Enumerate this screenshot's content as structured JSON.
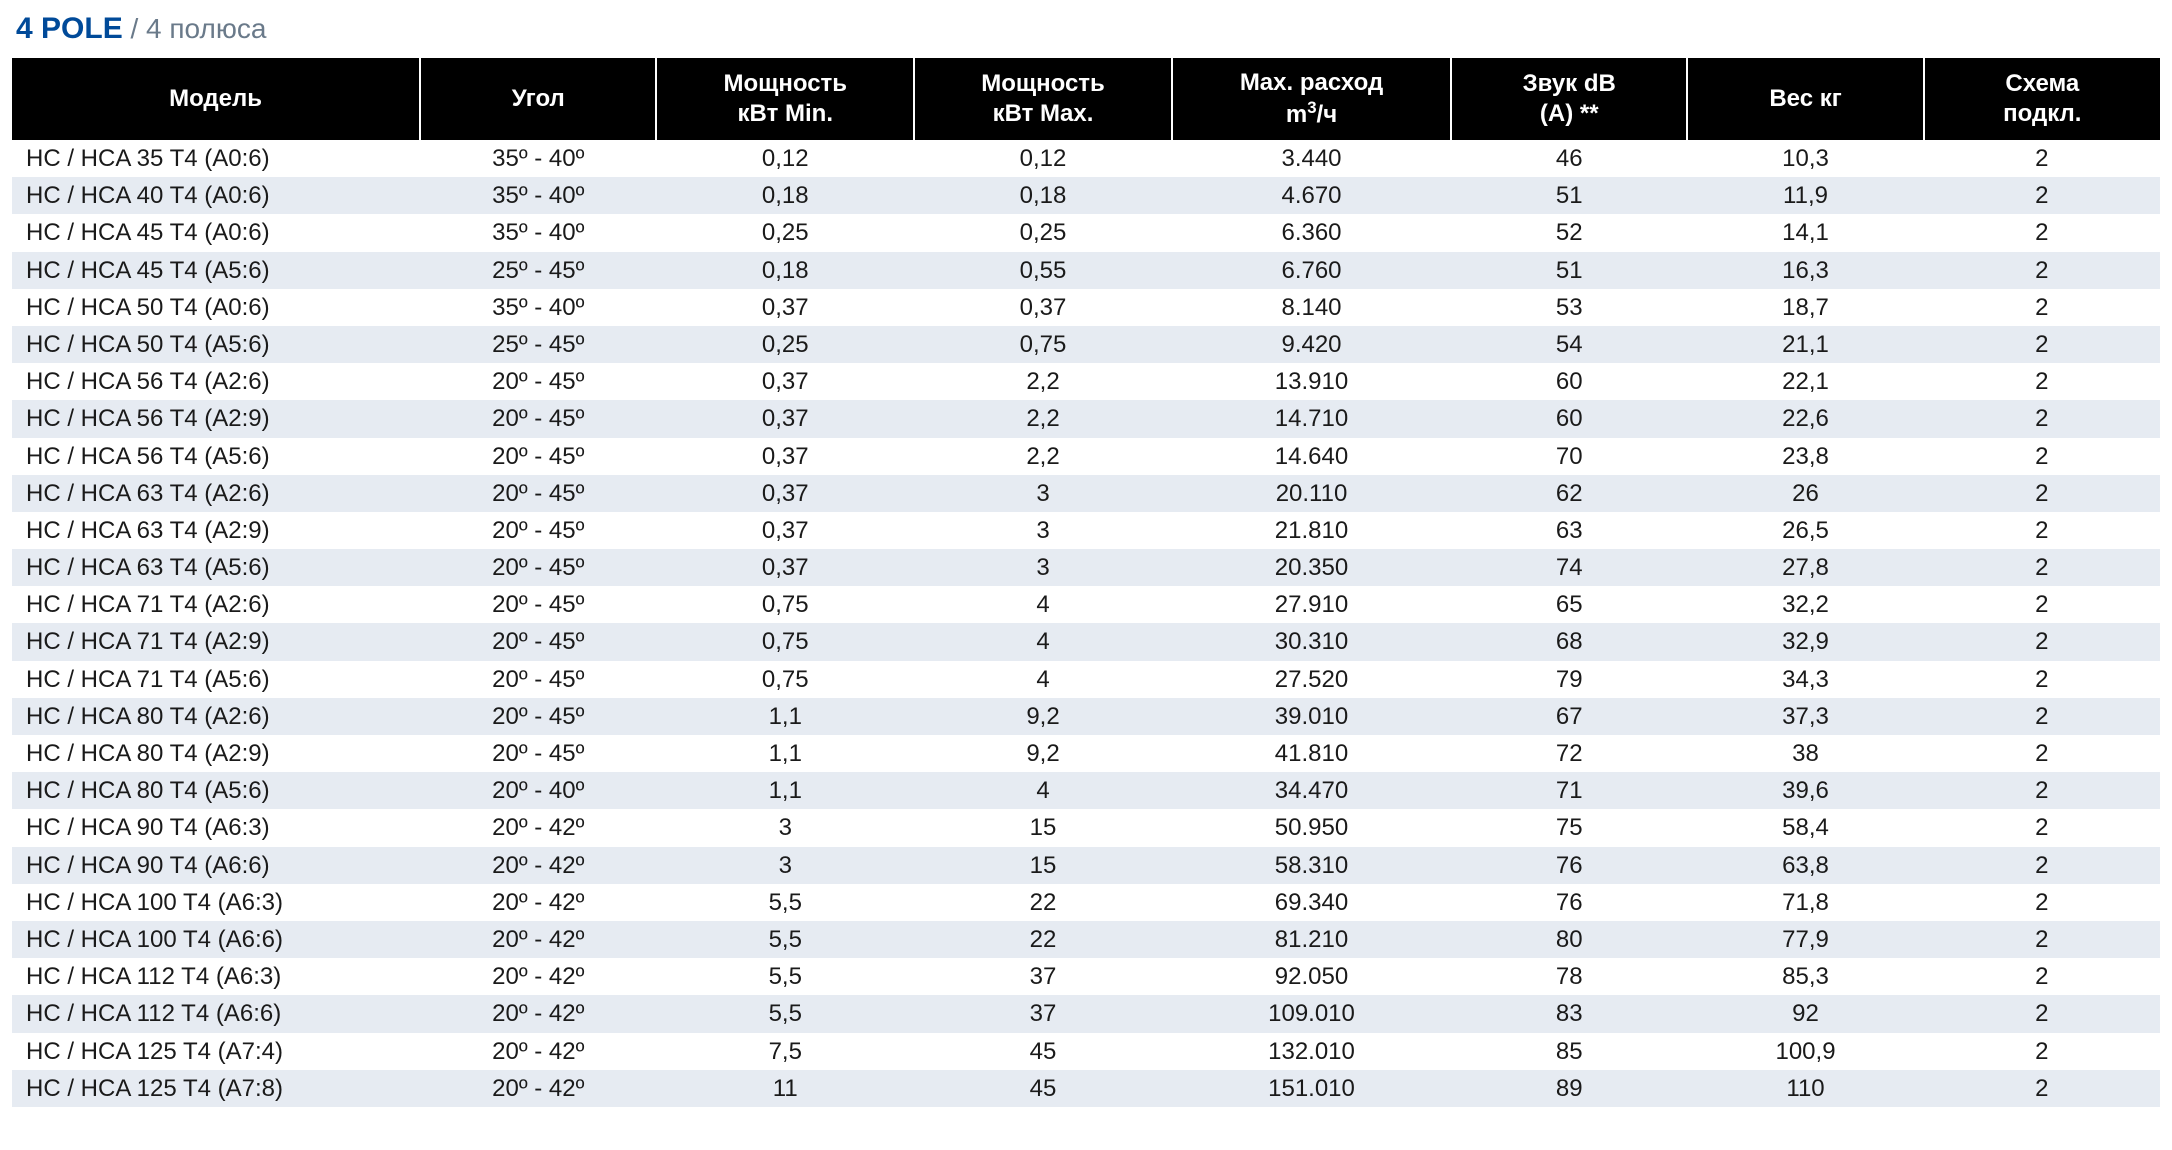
{
  "title": {
    "bold": "4 POLE",
    "separator": " / ",
    "light": "4 полюса"
  },
  "table": {
    "type": "table",
    "header_bg": "#000000",
    "header_fg": "#ffffff",
    "row_bg_odd": "#ffffff",
    "row_bg_even": "#e6ebf2",
    "text_color": "#1a1a1a",
    "font_size_header": 24,
    "font_size_body": 24,
    "columns": [
      {
        "key": "model",
        "label": "Модель",
        "width": "19%",
        "align": "left"
      },
      {
        "key": "angle",
        "label": "Угол",
        "width": "11%",
        "align": "center"
      },
      {
        "key": "pmin",
        "label": "Мощность кВт Min.",
        "width": "12%",
        "align": "center"
      },
      {
        "key": "pmax",
        "label": "Мощность кВт Max.",
        "width": "12%",
        "align": "center"
      },
      {
        "key": "flow",
        "label_html": "Max. расход m³/ч",
        "width": "13%",
        "align": "center"
      },
      {
        "key": "sound",
        "label": "Звук dB (A) **",
        "width": "11%",
        "align": "center"
      },
      {
        "key": "weight",
        "label": "Вес кг",
        "width": "11%",
        "align": "center"
      },
      {
        "key": "scheme",
        "label": "Схема подкл.",
        "width": "11%",
        "align": "center"
      }
    ],
    "rows": [
      {
        "model": "HC / HCA 35 T4 (A0:6)",
        "angle": "35º - 40º",
        "pmin": "0,12",
        "pmax": "0,12",
        "flow": "3.440",
        "sound": "46",
        "weight": "10,3",
        "scheme": "2"
      },
      {
        "model": "HC / HCA 40 T4 (A0:6)",
        "angle": "35º - 40º",
        "pmin": "0,18",
        "pmax": "0,18",
        "flow": "4.670",
        "sound": "51",
        "weight": "11,9",
        "scheme": "2"
      },
      {
        "model": "HC / HCA 45 T4 (A0:6)",
        "angle": "35º - 40º",
        "pmin": "0,25",
        "pmax": "0,25",
        "flow": "6.360",
        "sound": "52",
        "weight": "14,1",
        "scheme": "2"
      },
      {
        "model": "HC / HCA 45 T4 (A5:6)",
        "angle": "25º - 45º",
        "pmin": "0,18",
        "pmax": "0,55",
        "flow": "6.760",
        "sound": "51",
        "weight": "16,3",
        "scheme": "2"
      },
      {
        "model": "HC / HCA 50 T4 (A0:6)",
        "angle": "35º - 40º",
        "pmin": "0,37",
        "pmax": "0,37",
        "flow": "8.140",
        "sound": "53",
        "weight": "18,7",
        "scheme": "2"
      },
      {
        "model": "HC / HCA 50 T4 (A5:6)",
        "angle": "25º - 45º",
        "pmin": "0,25",
        "pmax": "0,75",
        "flow": "9.420",
        "sound": "54",
        "weight": "21,1",
        "scheme": "2"
      },
      {
        "model": "HC / HCA 56 T4 (A2:6)",
        "angle": "20º - 45º",
        "pmin": "0,37",
        "pmax": "2,2",
        "flow": "13.910",
        "sound": "60",
        "weight": "22,1",
        "scheme": "2"
      },
      {
        "model": "HC / HCA 56 T4 (A2:9)",
        "angle": "20º - 45º",
        "pmin": "0,37",
        "pmax": "2,2",
        "flow": "14.710",
        "sound": "60",
        "weight": "22,6",
        "scheme": "2"
      },
      {
        "model": "HC / HCA 56 T4 (A5:6)",
        "angle": "20º - 45º",
        "pmin": "0,37",
        "pmax": "2,2",
        "flow": "14.640",
        "sound": "70",
        "weight": "23,8",
        "scheme": "2"
      },
      {
        "model": "HC / HCA 63 T4 (A2:6)",
        "angle": "20º - 45º",
        "pmin": "0,37",
        "pmax": "3",
        "flow": "20.110",
        "sound": "62",
        "weight": "26",
        "scheme": "2"
      },
      {
        "model": "HC / HCA 63 T4 (A2:9)",
        "angle": "20º - 45º",
        "pmin": "0,37",
        "pmax": "3",
        "flow": "21.810",
        "sound": "63",
        "weight": "26,5",
        "scheme": "2"
      },
      {
        "model": "HC / HCA 63 T4 (A5:6)",
        "angle": "20º - 45º",
        "pmin": "0,37",
        "pmax": "3",
        "flow": "20.350",
        "sound": "74",
        "weight": "27,8",
        "scheme": "2"
      },
      {
        "model": "HC / HCA 71 T4 (A2:6)",
        "angle": "20º - 45º",
        "pmin": "0,75",
        "pmax": "4",
        "flow": "27.910",
        "sound": "65",
        "weight": "32,2",
        "scheme": "2"
      },
      {
        "model": "HC / HCA 71 T4 (A2:9)",
        "angle": "20º - 45º",
        "pmin": "0,75",
        "pmax": "4",
        "flow": "30.310",
        "sound": "68",
        "weight": "32,9",
        "scheme": "2"
      },
      {
        "model": "HC / HCA 71 T4 (A5:6)",
        "angle": "20º - 45º",
        "pmin": "0,75",
        "pmax": "4",
        "flow": "27.520",
        "sound": "79",
        "weight": "34,3",
        "scheme": "2"
      },
      {
        "model": "HC / HCA 80 T4 (A2:6)",
        "angle": "20º - 45º",
        "pmin": "1,1",
        "pmax": "9,2",
        "flow": "39.010",
        "sound": "67",
        "weight": "37,3",
        "scheme": "2"
      },
      {
        "model": "HC / HCA 80 T4 (A2:9)",
        "angle": "20º - 45º",
        "pmin": "1,1",
        "pmax": "9,2",
        "flow": "41.810",
        "sound": "72",
        "weight": "38",
        "scheme": "2"
      },
      {
        "model": "HC / HCA 80 T4 (A5:6)",
        "angle": "20º - 40º",
        "pmin": "1,1",
        "pmax": "4",
        "flow": "34.470",
        "sound": "71",
        "weight": "39,6",
        "scheme": "2"
      },
      {
        "model": "HC / HCA 90 T4 (A6:3)",
        "angle": "20º - 42º",
        "pmin": "3",
        "pmax": "15",
        "flow": "50.950",
        "sound": "75",
        "weight": "58,4",
        "scheme": "2"
      },
      {
        "model": "HC / HCA 90 T4 (A6:6)",
        "angle": "20º - 42º",
        "pmin": "3",
        "pmax": "15",
        "flow": "58.310",
        "sound": "76",
        "weight": "63,8",
        "scheme": "2"
      },
      {
        "model": "HC / HCA 100 T4 (A6:3)",
        "angle": "20º - 42º",
        "pmin": "5,5",
        "pmax": "22",
        "flow": "69.340",
        "sound": "76",
        "weight": "71,8",
        "scheme": "2"
      },
      {
        "model": "HC / HCA 100 T4 (A6:6)",
        "angle": "20º - 42º",
        "pmin": "5,5",
        "pmax": "22",
        "flow": "81.210",
        "sound": "80",
        "weight": "77,9",
        "scheme": "2"
      },
      {
        "model": "HC / HCA 112 T4 (A6:3)",
        "angle": "20º - 42º",
        "pmin": "5,5",
        "pmax": "37",
        "flow": "92.050",
        "sound": "78",
        "weight": "85,3",
        "scheme": "2"
      },
      {
        "model": "HC / HCA 112 T4 (A6:6)",
        "angle": "20º - 42º",
        "pmin": "5,5",
        "pmax": "37",
        "flow": "109.010",
        "sound": "83",
        "weight": "92",
        "scheme": "2"
      },
      {
        "model": "HC / HCA 125 T4 (A7:4)",
        "angle": "20º - 42º",
        "pmin": "7,5",
        "pmax": "45",
        "flow": "132.010",
        "sound": "85",
        "weight": "100,9",
        "scheme": "2"
      },
      {
        "model": "HC / HCA 125 T4 (A7:8)",
        "angle": "20º - 42º",
        "pmin": "11",
        "pmax": "45",
        "flow": "151.010",
        "sound": "89",
        "weight": "110",
        "scheme": "2"
      }
    ]
  }
}
